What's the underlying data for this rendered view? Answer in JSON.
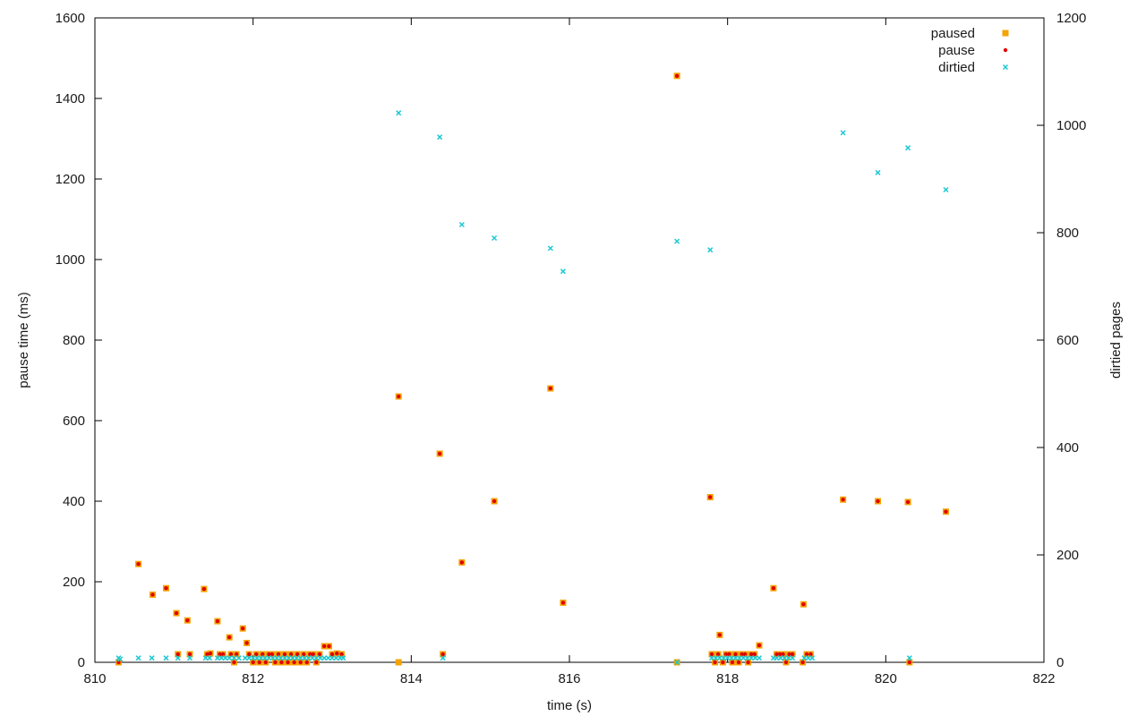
{
  "chart_data": {
    "type": "scatter",
    "xlabel": "time (s)",
    "ylabel": "pause time (ms)",
    "y2label": "dirtied pages",
    "xlim": [
      810,
      822
    ],
    "ylim": [
      0,
      1600
    ],
    "y2lim": [
      0,
      1200
    ],
    "xticks": [
      810,
      812,
      814,
      816,
      818,
      820,
      822
    ],
    "yticks": [
      0,
      200,
      400,
      600,
      800,
      1000,
      1200,
      1400,
      1600
    ],
    "y2ticks": [
      0,
      200,
      400,
      600,
      800,
      1000,
      1200
    ],
    "grid": false,
    "legend_position": "top-right",
    "series": [
      {
        "name": "paused",
        "axis": "left",
        "marker": "square",
        "color": "#f4a300",
        "points": [
          [
            810.3,
            0
          ],
          [
            810.55,
            244
          ],
          [
            810.73,
            168
          ],
          [
            810.9,
            184
          ],
          [
            811.03,
            122
          ],
          [
            811.05,
            20
          ],
          [
            811.17,
            104
          ],
          [
            811.2,
            20
          ],
          [
            811.38,
            182
          ],
          [
            811.42,
            20
          ],
          [
            811.46,
            22
          ],
          [
            811.55,
            102
          ],
          [
            811.58,
            20
          ],
          [
            811.62,
            20
          ],
          [
            811.7,
            62
          ],
          [
            811.72,
            20
          ],
          [
            811.76,
            0
          ],
          [
            811.79,
            20
          ],
          [
            811.87,
            84
          ],
          [
            811.92,
            48
          ],
          [
            811.95,
            20
          ],
          [
            812.0,
            0
          ],
          [
            812.04,
            20
          ],
          [
            812.08,
            0
          ],
          [
            812.12,
            20
          ],
          [
            812.16,
            0
          ],
          [
            812.2,
            20
          ],
          [
            812.24,
            20
          ],
          [
            812.28,
            0
          ],
          [
            812.32,
            20
          ],
          [
            812.36,
            0
          ],
          [
            812.4,
            20
          ],
          [
            812.44,
            0
          ],
          [
            812.48,
            20
          ],
          [
            812.52,
            0
          ],
          [
            812.56,
            20
          ],
          [
            812.6,
            0
          ],
          [
            812.64,
            20
          ],
          [
            812.68,
            0
          ],
          [
            812.72,
            20
          ],
          [
            812.76,
            20
          ],
          [
            812.8,
            0
          ],
          [
            812.84,
            20
          ],
          [
            812.9,
            40
          ],
          [
            812.96,
            40
          ],
          [
            813.0,
            20
          ],
          [
            813.06,
            22
          ],
          [
            813.12,
            20
          ],
          [
            813.84,
            0
          ],
          [
            813.84,
            660
          ],
          [
            814.36,
            518
          ],
          [
            814.4,
            20
          ],
          [
            814.64,
            248
          ],
          [
            815.05,
            400
          ],
          [
            815.76,
            680
          ],
          [
            815.92,
            148
          ],
          [
            817.36,
            1456
          ],
          [
            817.36,
            0
          ],
          [
            817.78,
            410
          ],
          [
            817.8,
            20
          ],
          [
            817.84,
            0
          ],
          [
            817.88,
            20
          ],
          [
            817.9,
            68
          ],
          [
            817.94,
            0
          ],
          [
            817.98,
            20
          ],
          [
            818.02,
            20
          ],
          [
            818.06,
            0
          ],
          [
            818.1,
            20
          ],
          [
            818.14,
            0
          ],
          [
            818.18,
            20
          ],
          [
            818.22,
            20
          ],
          [
            818.26,
            0
          ],
          [
            818.3,
            20
          ],
          [
            818.34,
            20
          ],
          [
            818.4,
            42
          ],
          [
            818.58,
            184
          ],
          [
            818.62,
            20
          ],
          [
            818.66,
            20
          ],
          [
            818.7,
            20
          ],
          [
            818.74,
            0
          ],
          [
            818.78,
            20
          ],
          [
            818.82,
            20
          ],
          [
            818.95,
            0
          ],
          [
            818.96,
            144
          ],
          [
            819.0,
            20
          ],
          [
            819.05,
            20
          ],
          [
            819.46,
            404
          ],
          [
            819.9,
            400
          ],
          [
            820.28,
            398
          ],
          [
            820.3,
            0
          ],
          [
            820.76,
            374
          ]
        ]
      },
      {
        "name": "pause",
        "axis": "left",
        "marker": "dot",
        "color": "#e00000",
        "points": [
          [
            810.3,
            0
          ],
          [
            810.55,
            244
          ],
          [
            810.73,
            168
          ],
          [
            810.9,
            184
          ],
          [
            811.03,
            122
          ],
          [
            811.05,
            20
          ],
          [
            811.17,
            104
          ],
          [
            811.2,
            20
          ],
          [
            811.38,
            182
          ],
          [
            811.42,
            20
          ],
          [
            811.46,
            22
          ],
          [
            811.55,
            102
          ],
          [
            811.58,
            20
          ],
          [
            811.62,
            20
          ],
          [
            811.7,
            62
          ],
          [
            811.72,
            20
          ],
          [
            811.76,
            0
          ],
          [
            811.79,
            20
          ],
          [
            811.87,
            84
          ],
          [
            811.92,
            48
          ],
          [
            811.95,
            20
          ],
          [
            812.0,
            0
          ],
          [
            812.04,
            20
          ],
          [
            812.08,
            0
          ],
          [
            812.12,
            20
          ],
          [
            812.16,
            0
          ],
          [
            812.2,
            20
          ],
          [
            812.24,
            20
          ],
          [
            812.28,
            0
          ],
          [
            812.32,
            20
          ],
          [
            812.36,
            0
          ],
          [
            812.4,
            20
          ],
          [
            812.44,
            0
          ],
          [
            812.48,
            20
          ],
          [
            812.52,
            0
          ],
          [
            812.56,
            20
          ],
          [
            812.6,
            0
          ],
          [
            812.64,
            20
          ],
          [
            812.68,
            0
          ],
          [
            812.72,
            20
          ],
          [
            812.76,
            20
          ],
          [
            812.8,
            0
          ],
          [
            812.84,
            20
          ],
          [
            812.9,
            40
          ],
          [
            812.96,
            40
          ],
          [
            813.0,
            20
          ],
          [
            813.06,
            22
          ],
          [
            813.12,
            20
          ],
          [
            813.84,
            660
          ],
          [
            814.36,
            518
          ],
          [
            814.4,
            20
          ],
          [
            814.64,
            248
          ],
          [
            815.05,
            400
          ],
          [
            815.76,
            680
          ],
          [
            815.92,
            148
          ],
          [
            817.36,
            1456
          ],
          [
            817.78,
            410
          ],
          [
            817.8,
            20
          ],
          [
            817.84,
            0
          ],
          [
            817.88,
            20
          ],
          [
            817.9,
            68
          ],
          [
            817.94,
            0
          ],
          [
            817.98,
            20
          ],
          [
            818.02,
            20
          ],
          [
            818.06,
            0
          ],
          [
            818.1,
            20
          ],
          [
            818.14,
            0
          ],
          [
            818.18,
            20
          ],
          [
            818.22,
            20
          ],
          [
            818.26,
            0
          ],
          [
            818.3,
            20
          ],
          [
            818.34,
            20
          ],
          [
            818.4,
            42
          ],
          [
            818.58,
            184
          ],
          [
            818.62,
            20
          ],
          [
            818.66,
            20
          ],
          [
            818.7,
            20
          ],
          [
            818.74,
            0
          ],
          [
            818.78,
            20
          ],
          [
            818.82,
            20
          ],
          [
            818.95,
            0
          ],
          [
            818.96,
            144
          ],
          [
            819.0,
            20
          ],
          [
            819.05,
            20
          ],
          [
            819.46,
            404
          ],
          [
            819.9,
            400
          ],
          [
            820.28,
            398
          ],
          [
            820.3,
            0
          ],
          [
            820.76,
            374
          ]
        ]
      },
      {
        "name": "dirtied",
        "axis": "right",
        "marker": "x",
        "color": "#1ec8d2",
        "points": [
          [
            810.3,
            8
          ],
          [
            810.32,
            6
          ],
          [
            810.55,
            8
          ],
          [
            810.72,
            8
          ],
          [
            810.9,
            8
          ],
          [
            811.05,
            8
          ],
          [
            811.2,
            8
          ],
          [
            811.4,
            8
          ],
          [
            811.45,
            8
          ],
          [
            811.55,
            8
          ],
          [
            811.6,
            8
          ],
          [
            811.65,
            8
          ],
          [
            811.7,
            8
          ],
          [
            811.76,
            8
          ],
          [
            811.82,
            8
          ],
          [
            811.9,
            8
          ],
          [
            811.95,
            8
          ],
          [
            812.0,
            8
          ],
          [
            812.05,
            8
          ],
          [
            812.1,
            8
          ],
          [
            812.15,
            8
          ],
          [
            812.2,
            8
          ],
          [
            812.25,
            8
          ],
          [
            812.3,
            8
          ],
          [
            812.35,
            8
          ],
          [
            812.4,
            8
          ],
          [
            812.45,
            8
          ],
          [
            812.5,
            8
          ],
          [
            812.55,
            8
          ],
          [
            812.6,
            8
          ],
          [
            812.65,
            8
          ],
          [
            812.7,
            8
          ],
          [
            812.75,
            8
          ],
          [
            812.8,
            8
          ],
          [
            812.85,
            8
          ],
          [
            812.9,
            8
          ],
          [
            812.95,
            8
          ],
          [
            813.0,
            8
          ],
          [
            813.05,
            8
          ],
          [
            813.1,
            8
          ],
          [
            813.14,
            8
          ],
          [
            813.84,
            1023
          ],
          [
            814.36,
            978
          ],
          [
            814.4,
            8
          ],
          [
            814.64,
            815
          ],
          [
            815.05,
            790
          ],
          [
            815.76,
            771
          ],
          [
            815.92,
            728
          ],
          [
            817.36,
            784
          ],
          [
            817.36,
            0
          ],
          [
            817.78,
            768
          ],
          [
            817.8,
            8
          ],
          [
            817.85,
            8
          ],
          [
            817.9,
            8
          ],
          [
            817.95,
            8
          ],
          [
            818.0,
            8
          ],
          [
            818.05,
            8
          ],
          [
            818.1,
            8
          ],
          [
            818.15,
            8
          ],
          [
            818.2,
            8
          ],
          [
            818.25,
            8
          ],
          [
            818.3,
            8
          ],
          [
            818.35,
            8
          ],
          [
            818.4,
            8
          ],
          [
            818.58,
            8
          ],
          [
            818.62,
            8
          ],
          [
            818.67,
            8
          ],
          [
            818.72,
            8
          ],
          [
            818.77,
            8
          ],
          [
            818.82,
            8
          ],
          [
            818.97,
            8
          ],
          [
            819.02,
            8
          ],
          [
            819.07,
            8
          ],
          [
            819.46,
            986
          ],
          [
            819.9,
            912
          ],
          [
            820.28,
            958
          ],
          [
            820.3,
            8
          ],
          [
            820.76,
            880
          ]
        ]
      }
    ]
  }
}
